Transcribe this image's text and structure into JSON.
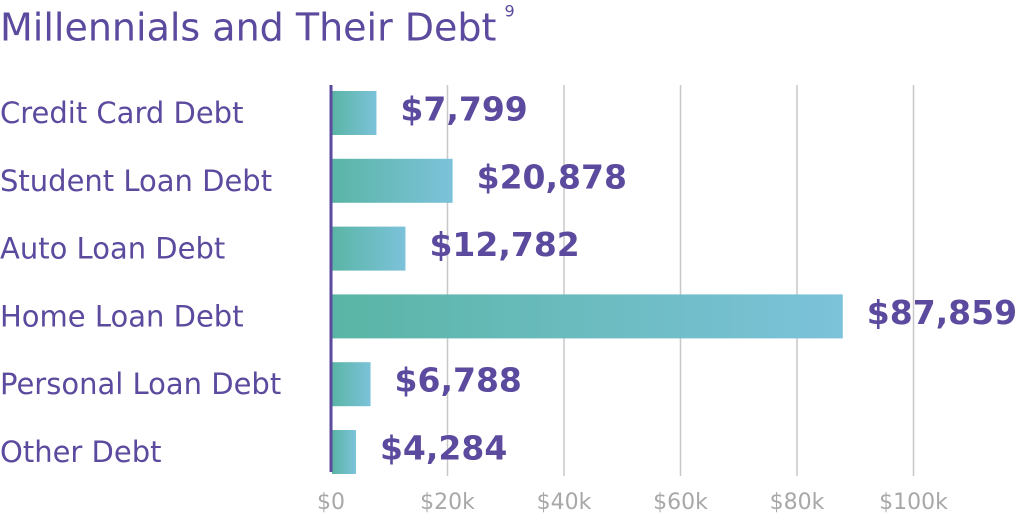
{
  "chart_data": {
    "type": "hbar",
    "title": "Millennials and Their Debt",
    "title_superscript": "9",
    "categories": [
      "Credit Card Debt",
      "Student Loan Debt",
      "Auto Loan Debt",
      "Home Loan Debt",
      "Personal Loan Debt",
      "Other Debt"
    ],
    "values": [
      7799,
      20878,
      12782,
      87859,
      6788,
      4284
    ],
    "value_labels": [
      "$7,799",
      "$20,878",
      "$12,782",
      "$87,859",
      "$6,788",
      "$4,284"
    ],
    "gradient": [
      "#5ab5a5",
      "#7cc2da"
    ],
    "text_color": "#5b4a9e",
    "xlim": [
      0,
      120000
    ],
    "xticks": [
      {
        "value": 0,
        "label": "$0"
      },
      {
        "value": 20000,
        "label": "$20k"
      },
      {
        "value": 40000,
        "label": "$40k"
      },
      {
        "value": 60000,
        "label": "$60k"
      },
      {
        "value": 80000,
        "label": "$80k"
      },
      {
        "value": 100000,
        "label": "$100k"
      }
    ],
    "grid": true
  }
}
